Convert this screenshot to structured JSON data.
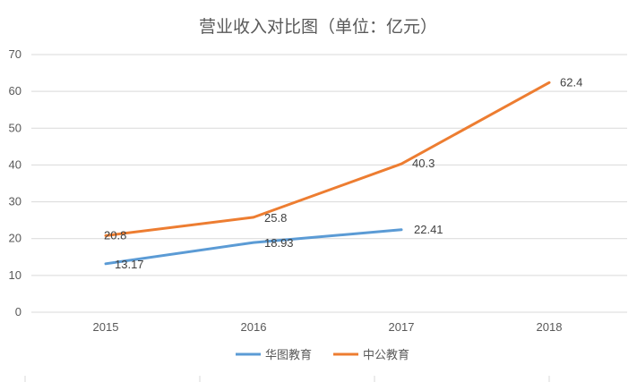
{
  "chart_data": {
    "type": "line",
    "title": "营业收入对比图（单位：亿元）",
    "categories": [
      "2015",
      "2016",
      "2017",
      "2018"
    ],
    "ylim": [
      0,
      70
    ],
    "yticks": [
      0,
      10,
      20,
      30,
      40,
      50,
      60,
      70
    ],
    "grid": true,
    "legend_position": "bottom",
    "series": [
      {
        "name": "华图教育",
        "color": "#5B9BD5",
        "values": [
          13.17,
          18.93,
          22.41,
          null
        ],
        "labels": [
          "13.17",
          "18.93",
          "22.41",
          ""
        ]
      },
      {
        "name": "中公教育",
        "color": "#ED7D31",
        "values": [
          20.8,
          25.8,
          40.3,
          62.4
        ],
        "labels": [
          "20.8",
          "25.8",
          "40.3",
          "62.4"
        ]
      }
    ]
  }
}
